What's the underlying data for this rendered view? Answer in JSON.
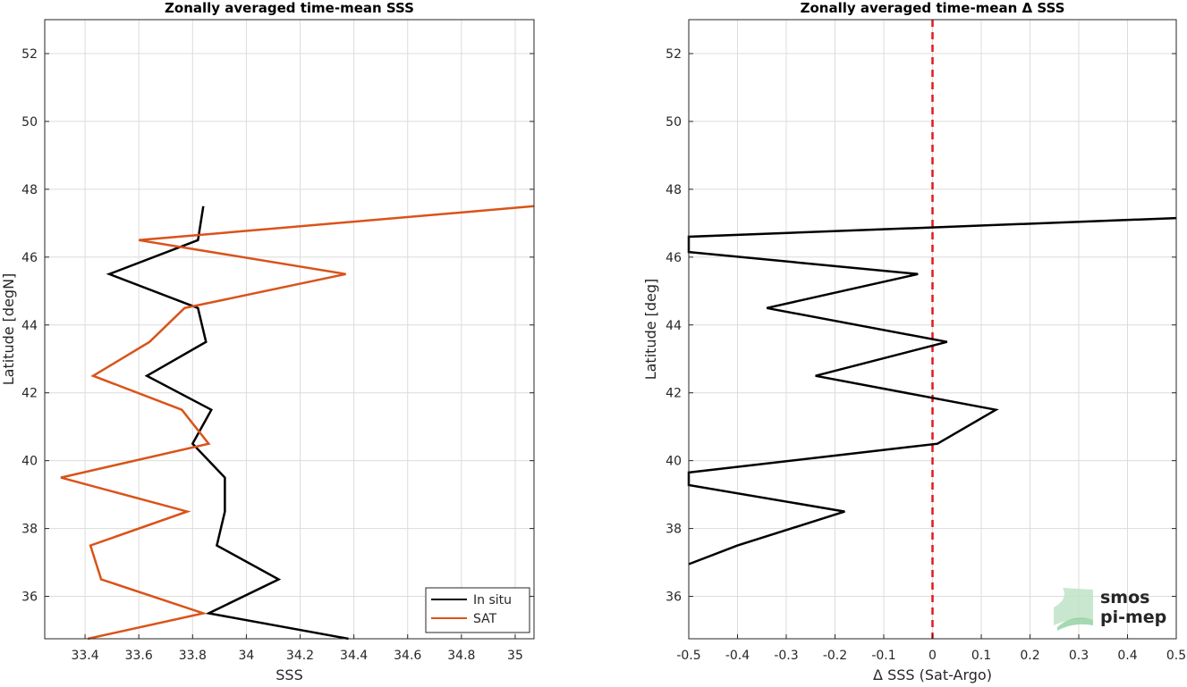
{
  "chart_data": [
    {
      "type": "line",
      "title": "Zonally averaged time-mean SSS",
      "xlabel": "SSS",
      "ylabel": "Latitude [degN]",
      "xlim": [
        33.25,
        35.07
      ],
      "ylim": [
        34.75,
        53
      ],
      "xticks": [
        33.4,
        33.6,
        33.8,
        34,
        34.2,
        34.4,
        34.6,
        34.8,
        35
      ],
      "xtick_labels": [
        "33.4",
        "33.6",
        "33.8",
        "34",
        "34.2",
        "34.4",
        "34.6",
        "34.8",
        "35"
      ],
      "yticks": [
        36,
        38,
        40,
        42,
        44,
        46,
        48,
        50,
        52
      ],
      "ytick_labels": [
        "36",
        "38",
        "40",
        "42",
        "44",
        "46",
        "48",
        "50",
        "52"
      ],
      "grid": true,
      "legend_position": "bottom-right",
      "series": [
        {
          "name": "In situ",
          "color": "#000000",
          "x": [
            34.38,
            33.86,
            34.12,
            33.89,
            33.92,
            33.92,
            33.8,
            33.87,
            33.63,
            33.85,
            33.82,
            33.49,
            33.82,
            33.84
          ],
          "y": [
            34.75,
            35.5,
            36.5,
            37.5,
            38.5,
            39.5,
            40.5,
            41.5,
            42.5,
            43.5,
            44.5,
            45.5,
            46.5,
            47.5
          ]
        },
        {
          "name": "SAT",
          "color": "#d95319",
          "x": [
            33.41,
            33.84,
            33.46,
            33.42,
            33.78,
            33.31,
            33.86,
            33.76,
            33.43,
            33.64,
            33.77,
            34.37,
            33.6,
            35.07
          ],
          "y": [
            34.75,
            35.5,
            36.5,
            37.5,
            38.5,
            39.5,
            40.5,
            41.5,
            42.5,
            43.5,
            44.5,
            45.5,
            46.5,
            47.5
          ]
        }
      ]
    },
    {
      "type": "line",
      "title": "Zonally averaged time-mean Δ SSS",
      "xlabel": "Δ SSS (Sat-Argo)",
      "ylabel": "Latitude [deg]",
      "xlim": [
        -0.5,
        0.5
      ],
      "ylim": [
        34.75,
        53
      ],
      "xticks": [
        -0.5,
        -0.4,
        -0.3,
        -0.2,
        -0.1,
        0,
        0.1,
        0.2,
        0.3,
        0.4,
        0.5
      ],
      "xtick_labels": [
        "-0.5",
        "-0.4",
        "-0.3",
        "-0.2",
        "-0.1",
        "0",
        "0.1",
        "0.2",
        "0.3",
        "0.4",
        "0.5"
      ],
      "yticks": [
        36,
        38,
        40,
        42,
        44,
        46,
        48,
        50,
        52
      ],
      "ytick_labels": [
        "36",
        "38",
        "40",
        "42",
        "44",
        "46",
        "48",
        "50",
        "52"
      ],
      "grid": true,
      "reference_line": {
        "x": 0,
        "color": "#e31a1c",
        "style": "dashed"
      },
      "series": [
        {
          "color": "#000000",
          "x": [
            -0.5,
            -0.4,
            -0.18,
            -0.5,
            -0.5,
            0.01,
            0.13,
            -0.24,
            0.03,
            -0.34,
            -0.03,
            -0.5,
            -0.5,
            0.5
          ],
          "y": [
            36.95,
            37.5,
            38.5,
            39.28,
            39.65,
            40.5,
            41.5,
            42.5,
            43.5,
            44.5,
            45.5,
            46.15,
            46.6,
            47.15
          ]
        }
      ]
    }
  ],
  "logo": {
    "line1": "smos",
    "line2": "pi-mep",
    "color": "#7fc08f"
  }
}
